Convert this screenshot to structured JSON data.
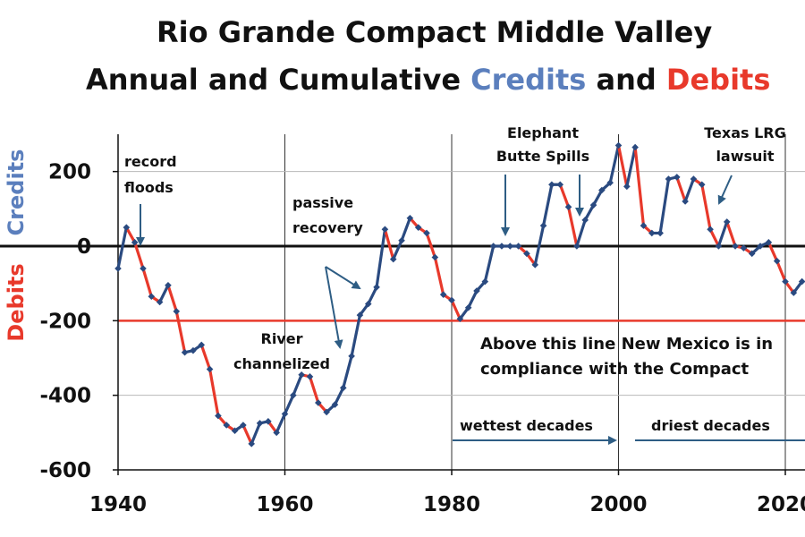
{
  "colors": {
    "credits": "#5b7fbd",
    "debits": "#e8392b",
    "marker": "#2a4a80",
    "annotation_arrow": "#2e5d84",
    "grid": "#b8b8b8",
    "axis": "#111111"
  },
  "chart_data": {
    "type": "line",
    "title_parts": [
      {
        "text": "Rio Grande Compact Middle Valley",
        "line": 1,
        "color": "#111111"
      },
      {
        "text": "Annual and Cumulative ",
        "line": 2,
        "color": "#111111"
      },
      {
        "text": "Credits",
        "line": 2,
        "color": "#5b7fbd"
      },
      {
        "text": " and ",
        "line": 2,
        "color": "#111111"
      },
      {
        "text": "Debits",
        "line": 2,
        "color": "#e8392b"
      }
    ],
    "ylabel_credits": "Credits",
    "ylabel_debits": "Debits",
    "xlim": [
      1940,
      2022
    ],
    "ylim": [
      -600,
      300
    ],
    "x_ticks": [
      1940,
      1960,
      1980,
      2000,
      2020
    ],
    "x_tick_labels": [
      "1940",
      "1960",
      "1980",
      "2000",
      "2020"
    ],
    "y_ticks": [
      200,
      0,
      -200,
      -400,
      -600
    ],
    "y_tick_labels": [
      "200",
      "0",
      "-200",
      "-400",
      "-600"
    ],
    "compliance_line": -200,
    "series": [
      {
        "x": [
          1940,
          1941,
          1942,
          1943,
          1944,
          1945,
          1946,
          1947,
          1948,
          1949,
          1950,
          1951,
          1952,
          1953,
          1954,
          1955,
          1956,
          1957,
          1958,
          1959,
          1960,
          1961,
          1962,
          1963,
          1964,
          1965,
          1966,
          1967,
          1968,
          1969,
          1970,
          1971,
          1972,
          1973,
          1974,
          1975,
          1976,
          1977,
          1978,
          1979,
          1980,
          1981,
          1982,
          1983,
          1984,
          1985,
          1986,
          1987,
          1988,
          1989,
          1990,
          1991,
          1992,
          1993,
          1994,
          1995,
          1996,
          1997,
          1998,
          1999,
          2000,
          2001,
          2002,
          2003,
          2004,
          2005,
          2006,
          2007,
          2008,
          2009,
          2010,
          2011,
          2012,
          2013,
          2014,
          2015,
          2016,
          2017,
          2018,
          2019,
          2020,
          2021,
          2022
        ],
        "y": [
          -60,
          50,
          10,
          -60,
          -135,
          -150,
          -105,
          -175,
          -285,
          -280,
          -265,
          -330,
          -455,
          -480,
          -495,
          -480,
          -530,
          -475,
          -470,
          -500,
          -450,
          -400,
          -345,
          -350,
          -420,
          -445,
          -425,
          -380,
          -295,
          -185,
          -155,
          -110,
          45,
          -35,
          15,
          75,
          50,
          35,
          -30,
          -130,
          -145,
          -195,
          -165,
          -120,
          -95,
          0,
          0,
          0,
          0,
          -20,
          -50,
          55,
          165,
          165,
          105,
          0,
          70,
          110,
          150,
          170,
          270,
          160,
          265,
          55,
          35,
          35,
          180,
          185,
          120,
          180,
          165,
          45,
          0,
          65,
          0,
          -5,
          -20,
          0,
          10,
          -40,
          -95,
          -125,
          -95
        ]
      }
    ],
    "annotations": {
      "record_floods": [
        "record",
        "floods"
      ],
      "passive_recovery": [
        "passive",
        "recovery"
      ],
      "river_channelized": [
        "River",
        "channelized"
      ],
      "elephant_butte": [
        "Elephant",
        "Butte Spills"
      ],
      "texas_lrg": [
        "Texas LRG",
        "lawsuit"
      ],
      "compliance": [
        "Above this line New Mexico is in",
        "compliance with the Compact"
      ],
      "wettest": "wettest decades",
      "driest": "driest decades"
    }
  }
}
